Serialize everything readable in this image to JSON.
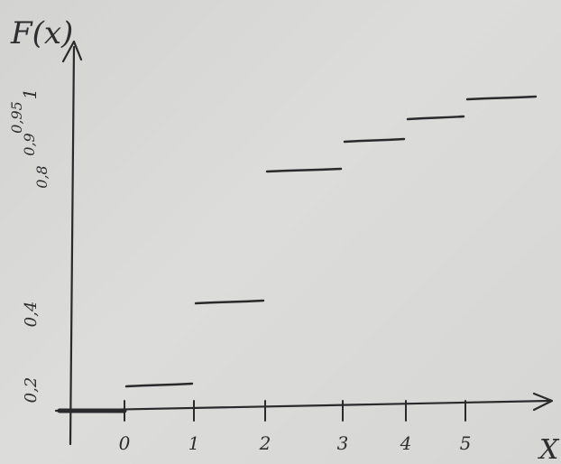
{
  "chart_data": {
    "type": "step",
    "title": "",
    "ylabel": "F(x)",
    "xlabel": "X",
    "x_ticks": [
      "0",
      "1",
      "2",
      "3",
      "4",
      "5"
    ],
    "y_ticks": [
      "0,2",
      "0,4",
      "0,8",
      "0,9",
      "0,95",
      "1"
    ],
    "steps": [
      {
        "x_start": 0,
        "x_end": 1,
        "y": 0.2
      },
      {
        "x_start": 1,
        "x_end": 2,
        "y": 0.4
      },
      {
        "x_start": 2,
        "x_end": 3,
        "y": 0.8
      },
      {
        "x_start": 3,
        "x_end": 4,
        "y": 0.9
      },
      {
        "x_start": 4,
        "x_end": 5,
        "y": 0.95
      },
      {
        "x_start": 5,
        "x_end": 6,
        "y": 1
      }
    ],
    "xlim": [
      -1,
      6
    ],
    "ylim": [
      0,
      1.05
    ],
    "grid": false,
    "colors": {
      "ink": "#2a2a2c",
      "paper": "#d8d8d6"
    }
  }
}
